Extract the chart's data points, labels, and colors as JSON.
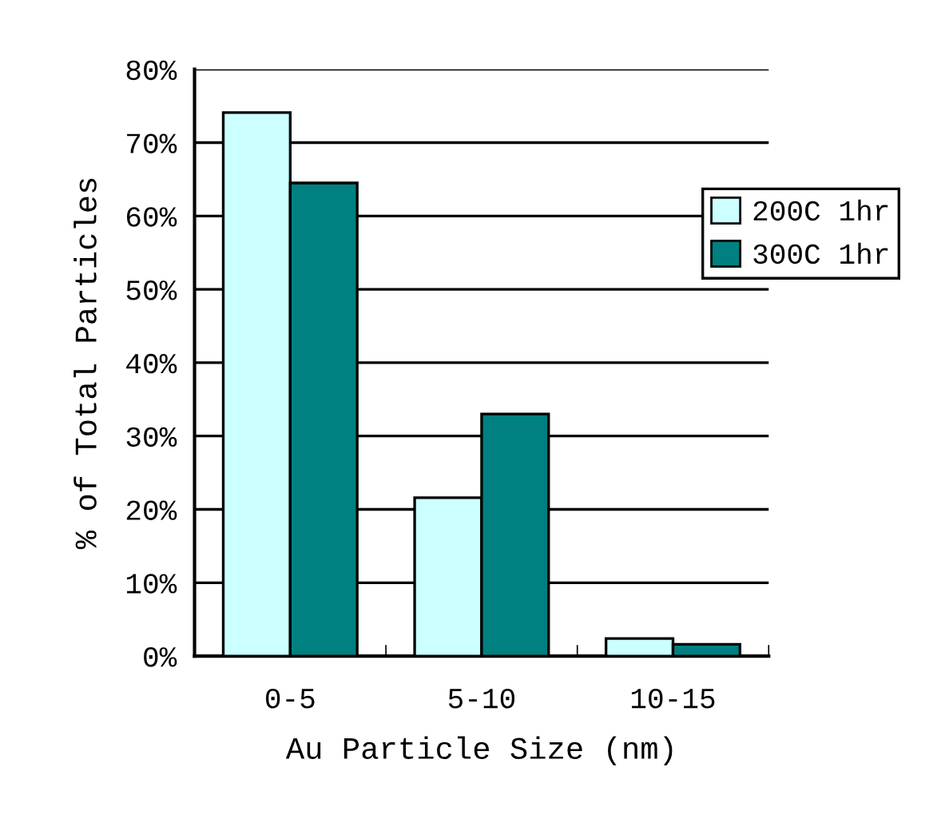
{
  "chart_data": {
    "type": "bar",
    "xlabel": "Au Particle Size (nm)",
    "ylabel": "% of Total Particles",
    "categories": [
      "0-5",
      "5-10",
      "10-15"
    ],
    "series": [
      {
        "name": "200C 1hr",
        "color": "#ccffff",
        "values": [
          74.1,
          21.6,
          2.4
        ]
      },
      {
        "name": "300C 1hr",
        "color": "#008080",
        "values": [
          64.5,
          33.0,
          1.6
        ]
      }
    ],
    "ylim": [
      0,
      80
    ],
    "yticks": [
      {
        "value": 0,
        "label": "0%"
      },
      {
        "value": 10,
        "label": "10%"
      },
      {
        "value": 20,
        "label": "20%"
      },
      {
        "value": 30,
        "label": "30%"
      },
      {
        "value": 40,
        "label": "40%"
      },
      {
        "value": 50,
        "label": "50%"
      },
      {
        "value": 60,
        "label": "60%"
      },
      {
        "value": 70,
        "label": "70%"
      },
      {
        "value": 80,
        "label": "80%"
      }
    ],
    "grid": "y",
    "legend": "right"
  }
}
